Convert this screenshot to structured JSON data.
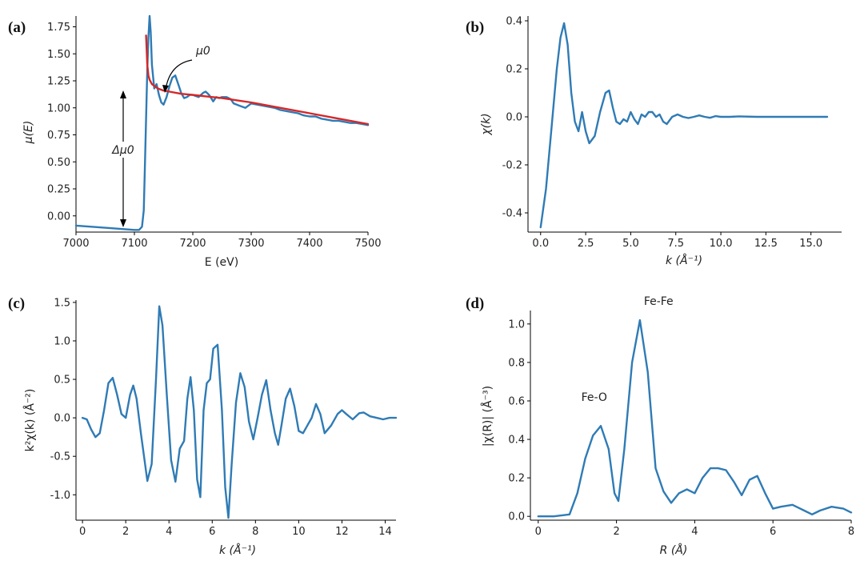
{
  "chart_data": [
    {
      "id": "a",
      "panel_label": "(a)",
      "type": "line",
      "xlabel": "E (eV)",
      "ylabel": "μ(E)",
      "xlim": [
        7000,
        7500
      ],
      "ylim": [
        -0.15,
        1.85
      ],
      "xticks": [
        7000,
        7100,
        7200,
        7300,
        7400,
        7500
      ],
      "xtick_labels": [
        "7000",
        "7100",
        "7200",
        "7300",
        "7400",
        "7500"
      ],
      "yticks": [
        0.0,
        0.25,
        0.5,
        0.75,
        1.0,
        1.25,
        1.5,
        1.75
      ],
      "ytick_labels": [
        "0.00",
        "0.25",
        "0.50",
        "0.75",
        "1.00",
        "1.25",
        "1.50",
        "1.75"
      ],
      "series": [
        {
          "name": "μ(E)",
          "color": "#2f7bb5",
          "x": [
            7000,
            7050,
            7100,
            7108,
            7113,
            7116,
            7118,
            7120,
            7122,
            7124,
            7126,
            7128,
            7130,
            7134,
            7138,
            7142,
            7146,
            7150,
            7155,
            7160,
            7165,
            7170,
            7175,
            7180,
            7185,
            7190,
            7195,
            7200,
            7210,
            7218,
            7222,
            7228,
            7235,
            7240,
            7245,
            7250,
            7258,
            7265,
            7270,
            7280,
            7290,
            7300,
            7310,
            7320,
            7330,
            7340,
            7350,
            7360,
            7370,
            7380,
            7390,
            7400,
            7410,
            7420,
            7430,
            7440,
            7450,
            7460,
            7470,
            7480,
            7490,
            7500
          ],
          "y": [
            -0.09,
            -0.11,
            -0.13,
            -0.13,
            -0.1,
            0.05,
            0.45,
            0.9,
            1.35,
            1.65,
            1.85,
            1.7,
            1.4,
            1.18,
            1.22,
            1.12,
            1.05,
            1.03,
            1.1,
            1.2,
            1.28,
            1.3,
            1.22,
            1.14,
            1.09,
            1.1,
            1.12,
            1.12,
            1.1,
            1.14,
            1.15,
            1.12,
            1.06,
            1.1,
            1.09,
            1.1,
            1.1,
            1.08,
            1.04,
            1.02,
            1.0,
            1.04,
            1.03,
            1.02,
            1.01,
            1.0,
            0.98,
            0.97,
            0.96,
            0.95,
            0.93,
            0.92,
            0.92,
            0.9,
            0.89,
            0.88,
            0.88,
            0.87,
            0.86,
            0.86,
            0.85,
            0.84
          ]
        },
        {
          "name": "μ0",
          "color": "#d62728",
          "x": [
            7120,
            7122,
            7124,
            7126,
            7130,
            7135,
            7140,
            7150,
            7160,
            7180,
            7200,
            7250,
            7300,
            7350,
            7400,
            7450,
            7500
          ],
          "y": [
            1.67,
            1.4,
            1.3,
            1.26,
            1.22,
            1.2,
            1.18,
            1.16,
            1.15,
            1.13,
            1.12,
            1.09,
            1.05,
            1.0,
            0.95,
            0.9,
            0.85
          ]
        }
      ],
      "annotations": [
        {
          "text": "Δμ0",
          "x": 7078,
          "y": 0.65
        },
        {
          "text": "μ0",
          "x": 7160,
          "y": 1.57
        }
      ],
      "grid": false
    },
    {
      "id": "b",
      "panel_label": "(b)",
      "type": "line",
      "xlabel": "k (Å⁻¹)",
      "ylabel": "χ(k)",
      "xlim": [
        -0.7,
        16.7
      ],
      "ylim": [
        -0.48,
        0.42
      ],
      "xticks": [
        0,
        2.5,
        5,
        7.5,
        10,
        12.5,
        15
      ],
      "xtick_labels": [
        "0.0",
        "2.5",
        "5.0",
        "7.5",
        "10.0",
        "12.5",
        "15.0"
      ],
      "yticks": [
        -0.4,
        -0.2,
        0.0,
        0.2,
        0.4
      ],
      "ytick_labels": [
        "-0.4",
        "-0.2",
        "0.0",
        "0.2",
        "0.4"
      ],
      "series": [
        {
          "name": "χ(k)",
          "color": "#2f7bb5",
          "x": [
            0,
            0.3,
            0.6,
            0.9,
            1.1,
            1.3,
            1.5,
            1.7,
            1.9,
            2.1,
            2.3,
            2.5,
            2.7,
            3.0,
            3.3,
            3.6,
            3.8,
            4.0,
            4.2,
            4.4,
            4.6,
            4.8,
            5.0,
            5.2,
            5.4,
            5.6,
            5.8,
            6.0,
            6.2,
            6.4,
            6.6,
            6.8,
            7.0,
            7.3,
            7.6,
            7.9,
            8.2,
            8.5,
            8.8,
            9.1,
            9.4,
            9.7,
            10.0,
            10.5,
            11,
            12,
            13,
            14,
            15,
            15.9
          ],
          "y": [
            -0.46,
            -0.3,
            -0.05,
            0.2,
            0.33,
            0.39,
            0.3,
            0.1,
            -0.02,
            -0.06,
            0.02,
            -0.06,
            -0.11,
            -0.08,
            0.02,
            0.1,
            0.11,
            0.04,
            -0.02,
            -0.03,
            -0.01,
            -0.02,
            0.02,
            -0.01,
            -0.03,
            0.01,
            0.0,
            0.02,
            0.02,
            0.0,
            0.01,
            -0.02,
            -0.03,
            0.0,
            0.01,
            0.0,
            -0.005,
            0.0,
            0.006,
            0.0,
            -0.004,
            0.003,
            0.0,
            0.0,
            0.002,
            0.0,
            0.0,
            0.0,
            0.0,
            0.0
          ]
        }
      ],
      "grid": false
    },
    {
      "id": "c",
      "panel_label": "(c)",
      "type": "line",
      "xlabel": "k (Å⁻¹)",
      "ylabel": "k²χ(k) (Å⁻²)",
      "xlim": [
        -0.3,
        14.5
      ],
      "ylim": [
        -1.33,
        1.53
      ],
      "xticks": [
        0,
        2,
        4,
        6,
        8,
        10,
        12,
        14
      ],
      "xtick_labels": [
        "0",
        "2",
        "4",
        "6",
        "8",
        "10",
        "12",
        "14"
      ],
      "yticks": [
        -1.0,
        -0.5,
        0.0,
        0.5,
        1.0,
        1.5
      ],
      "ytick_labels": [
        "-1.0",
        "-0.5",
        "0.0",
        "0.5",
        "1.0",
        "1.5"
      ],
      "series": [
        {
          "name": "k²χ(k)",
          "color": "#2f7bb5",
          "x": [
            0,
            0.2,
            0.4,
            0.6,
            0.8,
            1.0,
            1.2,
            1.4,
            1.6,
            1.8,
            2.0,
            2.2,
            2.35,
            2.5,
            2.7,
            3.0,
            3.2,
            3.4,
            3.55,
            3.7,
            3.9,
            4.1,
            4.3,
            4.5,
            4.7,
            4.85,
            5.0,
            5.15,
            5.3,
            5.45,
            5.6,
            5.75,
            5.9,
            6.05,
            6.25,
            6.45,
            6.6,
            6.75,
            6.9,
            7.1,
            7.3,
            7.5,
            7.7,
            7.9,
            8.1,
            8.3,
            8.5,
            8.7,
            8.9,
            9.05,
            9.2,
            9.4,
            9.6,
            9.8,
            10.0,
            10.2,
            10.4,
            10.6,
            10.8,
            11.0,
            11.2,
            11.5,
            11.8,
            12.0,
            12.2,
            12.5,
            12.8,
            13.0,
            13.3,
            13.6,
            13.9,
            14.2,
            14.5
          ],
          "y": [
            0.0,
            -0.02,
            -0.15,
            -0.25,
            -0.2,
            0.1,
            0.45,
            0.52,
            0.3,
            0.05,
            0.0,
            0.3,
            0.42,
            0.25,
            -0.2,
            -0.82,
            -0.6,
            0.5,
            1.45,
            1.2,
            0.3,
            -0.55,
            -0.83,
            -0.4,
            -0.3,
            0.25,
            0.53,
            0.1,
            -0.8,
            -1.03,
            0.1,
            0.45,
            0.5,
            0.9,
            0.95,
            0.1,
            -0.9,
            -1.3,
            -0.6,
            0.2,
            0.58,
            0.4,
            -0.05,
            -0.28,
            0.0,
            0.3,
            0.49,
            0.1,
            -0.2,
            -0.35,
            -0.1,
            0.25,
            0.38,
            0.15,
            -0.17,
            -0.2,
            -0.1,
            0.0,
            0.18,
            0.05,
            -0.2,
            -0.1,
            0.05,
            0.1,
            0.05,
            -0.02,
            0.06,
            0.07,
            0.02,
            0.0,
            -0.02,
            0.0,
            0.0
          ]
        }
      ],
      "grid": false
    },
    {
      "id": "d",
      "panel_label": "(d)",
      "type": "line",
      "xlabel": "R (Å)",
      "ylabel": "|χ(R)| (Å⁻³)",
      "xlim": [
        -0.2,
        8
      ],
      "ylim": [
        -0.02,
        1.07
      ],
      "xticks": [
        0,
        2,
        4,
        6,
        8
      ],
      "xtick_labels": [
        "0",
        "2",
        "4",
        "6",
        "8"
      ],
      "yticks": [
        0.0,
        0.2,
        0.4,
        0.6,
        0.8,
        1.0
      ],
      "ytick_labels": [
        "0.0",
        "0.2",
        "0.4",
        "0.6",
        "0.8",
        "1.0"
      ],
      "series": [
        {
          "name": "|χ(R)|",
          "color": "#2f7bb5",
          "x": [
            0,
            0.4,
            0.8,
            1.0,
            1.2,
            1.4,
            1.6,
            1.8,
            1.95,
            2.05,
            2.2,
            2.4,
            2.6,
            2.8,
            3.0,
            3.2,
            3.4,
            3.6,
            3.8,
            4.0,
            4.2,
            4.4,
            4.6,
            4.8,
            5.0,
            5.2,
            5.4,
            5.6,
            5.8,
            6.0,
            6.2,
            6.5,
            6.8,
            7.0,
            7.2,
            7.5,
            7.8,
            8.0
          ],
          "y": [
            0.0,
            0.0,
            0.01,
            0.12,
            0.3,
            0.42,
            0.47,
            0.35,
            0.12,
            0.08,
            0.35,
            0.8,
            1.02,
            0.75,
            0.25,
            0.13,
            0.07,
            0.12,
            0.14,
            0.12,
            0.2,
            0.25,
            0.25,
            0.24,
            0.18,
            0.11,
            0.19,
            0.21,
            0.12,
            0.04,
            0.05,
            0.06,
            0.03,
            0.01,
            0.03,
            0.05,
            0.04,
            0.02
          ]
        }
      ],
      "annotations": [
        {
          "text": "Fe-O",
          "x": 1.1,
          "y": 0.6
        },
        {
          "text": "Fe-Fe",
          "x": 2.7,
          "y": 1.1
        }
      ],
      "grid": false
    }
  ]
}
